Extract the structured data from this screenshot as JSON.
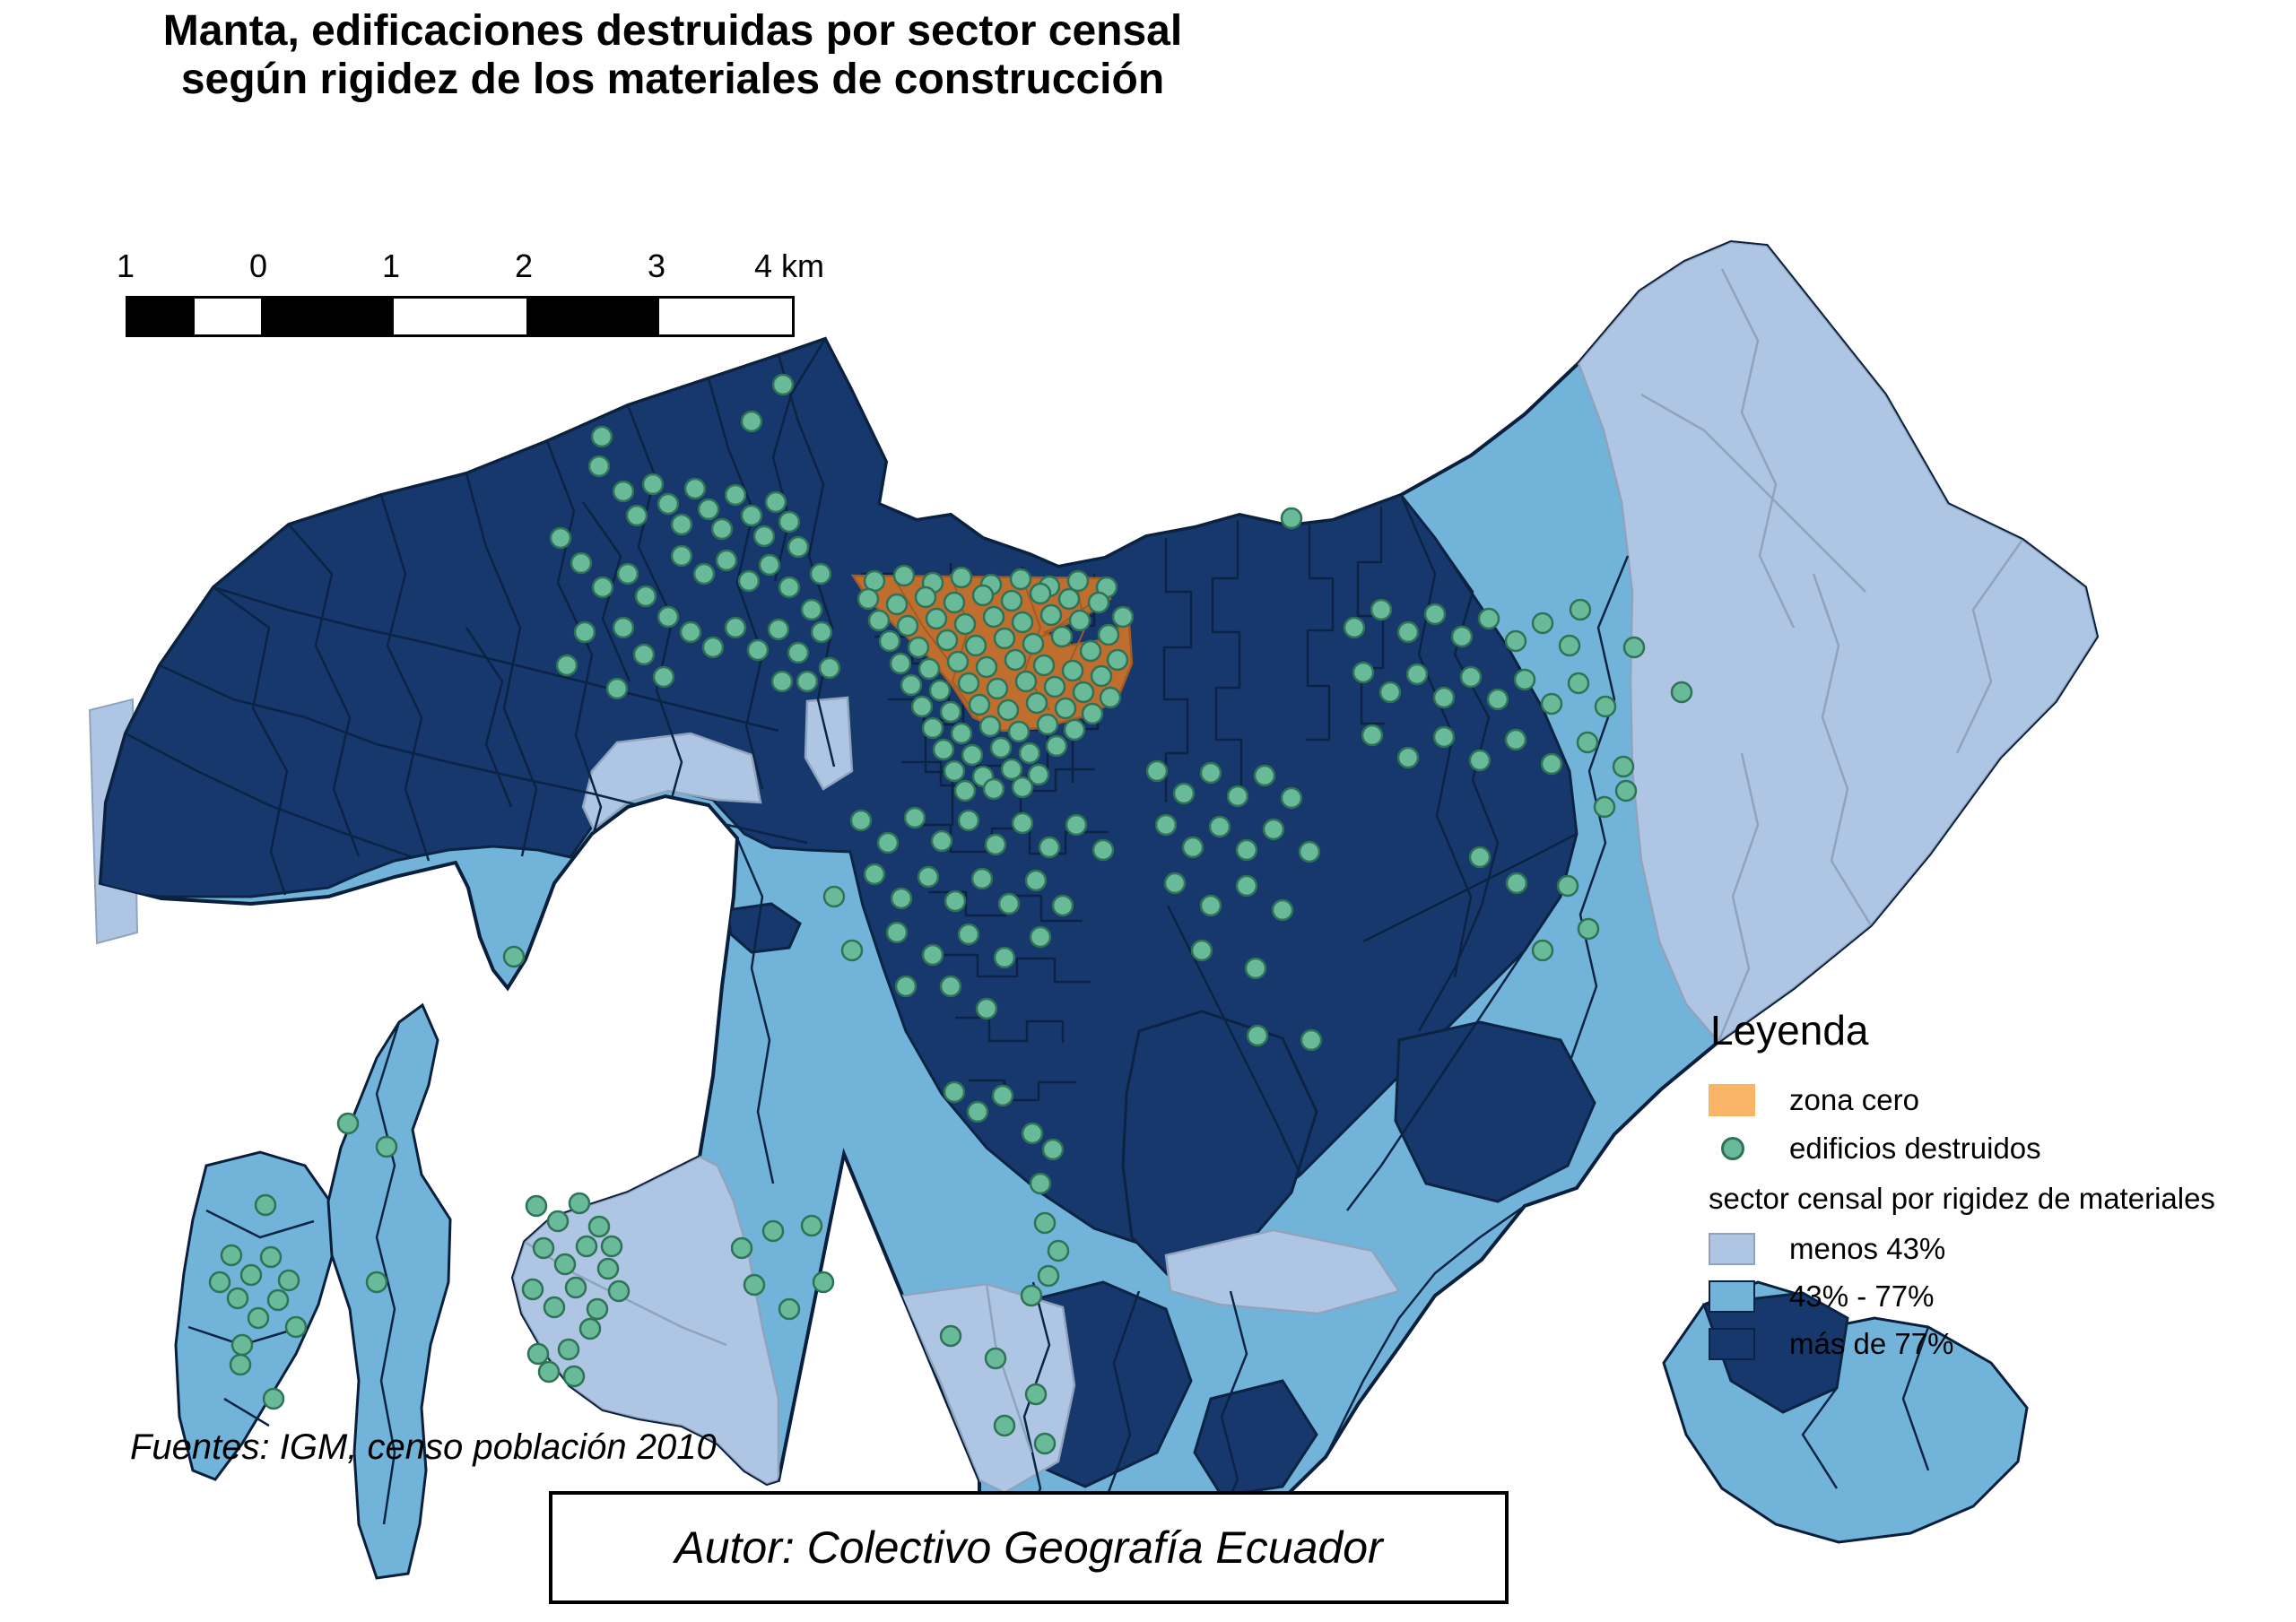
{
  "title": {
    "line1": "Manta, edificaciones destruidas por sector censal",
    "line2": "según rigidez de los materiales de construcción"
  },
  "scale_bar": {
    "tick_labels": [
      "1",
      "0",
      "1",
      "2",
      "3",
      "4 km"
    ]
  },
  "legend": {
    "heading": "Leyenda",
    "zona_cero": {
      "label": "zona cero",
      "color": "#f9b466"
    },
    "edificios": {
      "label": "edificios destruidos"
    },
    "sector_heading": "sector censal por rigidez de materiales",
    "classes": [
      {
        "label": "menos 43%",
        "color": "#aec6e3"
      },
      {
        "label": "43% - 77%",
        "color": "#72b4d9"
      },
      {
        "label": "más de 77%",
        "color": "#16386d"
      }
    ]
  },
  "source_note": "Fuentes: IGM, censo población 2010",
  "author_box": "Autor: Colectivo Geografía Ecuador",
  "map": {
    "colors": {
      "ocean": "#ffffff",
      "coast_stroke": "#0a1f3c",
      "boundary_stroke": "#0c2444",
      "boundary_light_stroke": "#8fa3bd",
      "class_low": "#aec6e3",
      "class_mid": "#72b4d9",
      "class_high": "#16386d",
      "zona_cero_map": "#bf6e2d",
      "zona_cero_map_stroke": "#a05c24",
      "dot_fill": "#68ba98",
      "dot_stroke": "#2f7257"
    },
    "dot_radius": 11,
    "destroyed_buildings": [
      [
        668,
        520
      ],
      [
        695,
        548
      ],
      [
        710,
        575
      ],
      [
        728,
        540
      ],
      [
        745,
        562
      ],
      [
        760,
        585
      ],
      [
        775,
        545
      ],
      [
        790,
        568
      ],
      [
        805,
        590
      ],
      [
        820,
        552
      ],
      [
        838,
        575
      ],
      [
        852,
        598
      ],
      [
        865,
        560
      ],
      [
        880,
        582
      ],
      [
        760,
        620
      ],
      [
        785,
        640
      ],
      [
        810,
        625
      ],
      [
        835,
        648
      ],
      [
        858,
        630
      ],
      [
        880,
        655
      ],
      [
        700,
        640
      ],
      [
        720,
        665
      ],
      [
        745,
        688
      ],
      [
        770,
        705
      ],
      [
        795,
        722
      ],
      [
        820,
        700
      ],
      [
        845,
        725
      ],
      [
        868,
        702
      ],
      [
        890,
        728
      ],
      [
        905,
        680
      ],
      [
        915,
        640
      ],
      [
        890,
        610
      ],
      [
        625,
        600
      ],
      [
        648,
        628
      ],
      [
        672,
        655
      ],
      [
        695,
        700
      ],
      [
        718,
        730
      ],
      [
        740,
        755
      ],
      [
        916,
        705
      ],
      [
        925,
        745
      ],
      [
        652,
        705
      ],
      [
        632,
        742
      ],
      [
        900,
        760
      ],
      [
        872,
        760
      ],
      [
        688,
        768
      ],
      [
        873,
        429
      ],
      [
        671,
        487
      ],
      [
        838,
        470
      ],
      [
        975,
        648
      ],
      [
        1008,
        642
      ],
      [
        1040,
        650
      ],
      [
        1072,
        644
      ],
      [
        1105,
        652
      ],
      [
        1138,
        646
      ],
      [
        1170,
        654
      ],
      [
        1202,
        648
      ],
      [
        1234,
        655
      ],
      [
        968,
        668
      ],
      [
        1000,
        674
      ],
      [
        1032,
        666
      ],
      [
        1064,
        672
      ],
      [
        1096,
        664
      ],
      [
        1128,
        670
      ],
      [
        1160,
        662
      ],
      [
        1192,
        668
      ],
      [
        1225,
        672
      ],
      [
        1252,
        688
      ],
      [
        980,
        692
      ],
      [
        1012,
        698
      ],
      [
        1044,
        690
      ],
      [
        1076,
        696
      ],
      [
        1108,
        688
      ],
      [
        1140,
        694
      ],
      [
        1172,
        686
      ],
      [
        1204,
        692
      ],
      [
        1236,
        708
      ],
      [
        992,
        715
      ],
      [
        1024,
        722
      ],
      [
        1056,
        714
      ],
      [
        1088,
        720
      ],
      [
        1120,
        712
      ],
      [
        1152,
        718
      ],
      [
        1184,
        710
      ],
      [
        1216,
        726
      ],
      [
        1246,
        736
      ],
      [
        1004,
        740
      ],
      [
        1036,
        746
      ],
      [
        1068,
        738
      ],
      [
        1100,
        744
      ],
      [
        1132,
        736
      ],
      [
        1164,
        742
      ],
      [
        1196,
        748
      ],
      [
        1228,
        754
      ],
      [
        1016,
        764
      ],
      [
        1048,
        770
      ],
      [
        1080,
        762
      ],
      [
        1112,
        768
      ],
      [
        1144,
        760
      ],
      [
        1176,
        766
      ],
      [
        1208,
        772
      ],
      [
        1238,
        778
      ],
      [
        1028,
        788
      ],
      [
        1060,
        794
      ],
      [
        1092,
        786
      ],
      [
        1124,
        792
      ],
      [
        1156,
        784
      ],
      [
        1188,
        790
      ],
      [
        1218,
        796
      ],
      [
        1040,
        812
      ],
      [
        1072,
        818
      ],
      [
        1104,
        810
      ],
      [
        1136,
        816
      ],
      [
        1168,
        808
      ],
      [
        1198,
        814
      ],
      [
        1052,
        836
      ],
      [
        1084,
        842
      ],
      [
        1116,
        834
      ],
      [
        1148,
        840
      ],
      [
        1178,
        832
      ],
      [
        1064,
        860
      ],
      [
        1096,
        866
      ],
      [
        1128,
        858
      ],
      [
        1158,
        864
      ],
      [
        1076,
        882
      ],
      [
        1108,
        880
      ],
      [
        1140,
        878
      ],
      [
        960,
        915
      ],
      [
        990,
        940
      ],
      [
        1020,
        912
      ],
      [
        1050,
        938
      ],
      [
        1080,
        915
      ],
      [
        1110,
        942
      ],
      [
        1140,
        918
      ],
      [
        1170,
        945
      ],
      [
        1200,
        920
      ],
      [
        1230,
        948
      ],
      [
        975,
        975
      ],
      [
        1005,
        1002
      ],
      [
        1035,
        978
      ],
      [
        1065,
        1005
      ],
      [
        1095,
        980
      ],
      [
        1125,
        1008
      ],
      [
        1155,
        982
      ],
      [
        1185,
        1010
      ],
      [
        1000,
        1040
      ],
      [
        1040,
        1065
      ],
      [
        1080,
        1042
      ],
      [
        1120,
        1068
      ],
      [
        1160,
        1045
      ],
      [
        1060,
        1100
      ],
      [
        1100,
        1125
      ],
      [
        1010,
        1100
      ],
      [
        950,
        1060
      ],
      [
        930,
        1000
      ],
      [
        1064,
        1218
      ],
      [
        1090,
        1240
      ],
      [
        1118,
        1222
      ],
      [
        1151,
        1264
      ],
      [
        1174,
        1282
      ],
      [
        1160,
        1320
      ],
      [
        1165,
        1364
      ],
      [
        1180,
        1395
      ],
      [
        1169,
        1423
      ],
      [
        1150,
        1445
      ],
      [
        1402,
        1155
      ],
      [
        1462,
        1160
      ],
      [
        1290,
        860
      ],
      [
        1320,
        885
      ],
      [
        1350,
        862
      ],
      [
        1380,
        888
      ],
      [
        1410,
        865
      ],
      [
        1440,
        890
      ],
      [
        1300,
        920
      ],
      [
        1330,
        945
      ],
      [
        1360,
        922
      ],
      [
        1390,
        948
      ],
      [
        1420,
        925
      ],
      [
        1460,
        950
      ],
      [
        1310,
        985
      ],
      [
        1350,
        1010
      ],
      [
        1390,
        988
      ],
      [
        1430,
        1015
      ],
      [
        1340,
        1060
      ],
      [
        1400,
        1080
      ],
      [
        1510,
        700
      ],
      [
        1540,
        680
      ],
      [
        1570,
        705
      ],
      [
        1600,
        685
      ],
      [
        1630,
        710
      ],
      [
        1660,
        690
      ],
      [
        1690,
        715
      ],
      [
        1720,
        695
      ],
      [
        1750,
        720
      ],
      [
        1520,
        750
      ],
      [
        1550,
        772
      ],
      [
        1580,
        752
      ],
      [
        1610,
        778
      ],
      [
        1640,
        755
      ],
      [
        1670,
        780
      ],
      [
        1700,
        758
      ],
      [
        1730,
        785
      ],
      [
        1760,
        762
      ],
      [
        1790,
        788
      ],
      [
        1530,
        820
      ],
      [
        1570,
        845
      ],
      [
        1610,
        822
      ],
      [
        1650,
        848
      ],
      [
        1690,
        825
      ],
      [
        1730,
        852
      ],
      [
        1770,
        828
      ],
      [
        1810,
        855
      ],
      [
        1875,
        772
      ],
      [
        1813,
        882
      ],
      [
        1789,
        900
      ],
      [
        1650,
        956
      ],
      [
        1691,
        985
      ],
      [
        1748,
        988
      ],
      [
        1771,
        1036
      ],
      [
        1720,
        1060
      ],
      [
        1440,
        578
      ],
      [
        1762,
        680
      ],
      [
        1822,
        722
      ],
      [
        827,
        1392
      ],
      [
        841,
        1433
      ],
      [
        862,
        1373
      ],
      [
        905,
        1367
      ],
      [
        880,
        1460
      ],
      [
        918,
        1430
      ],
      [
        1060,
        1490
      ],
      [
        1110,
        1515
      ],
      [
        1155,
        1555
      ],
      [
        1120,
        1590
      ],
      [
        1165,
        1610
      ],
      [
        598,
        1345
      ],
      [
        622,
        1362
      ],
      [
        646,
        1342
      ],
      [
        668,
        1368
      ],
      [
        606,
        1392
      ],
      [
        630,
        1410
      ],
      [
        654,
        1390
      ],
      [
        678,
        1415
      ],
      [
        594,
        1438
      ],
      [
        618,
        1458
      ],
      [
        642,
        1436
      ],
      [
        666,
        1460
      ],
      [
        634,
        1505
      ],
      [
        658,
        1482
      ],
      [
        690,
        1440
      ],
      [
        682,
        1390
      ],
      [
        600,
        1510
      ],
      [
        640,
        1535
      ],
      [
        612,
        1530
      ],
      [
        258,
        1400
      ],
      [
        280,
        1422
      ],
      [
        302,
        1402
      ],
      [
        322,
        1428
      ],
      [
        265,
        1448
      ],
      [
        288,
        1470
      ],
      [
        310,
        1450
      ],
      [
        296,
        1344
      ],
      [
        270,
        1500
      ],
      [
        330,
        1480
      ],
      [
        268,
        1522
      ],
      [
        305,
        1560
      ],
      [
        245,
        1430
      ],
      [
        388,
        1253
      ],
      [
        431,
        1279
      ],
      [
        420,
        1430
      ],
      [
        573,
        1067
      ]
    ]
  }
}
